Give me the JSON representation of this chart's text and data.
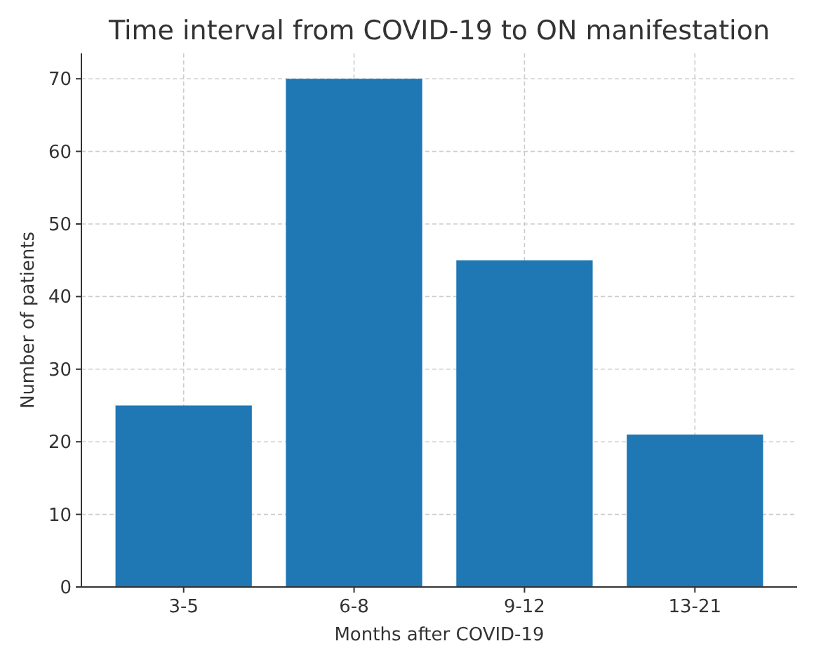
{
  "chart_data": {
    "type": "bar",
    "title": "Time interval from COVID-19 to ON manifestation",
    "xlabel": "Months after COVID-19",
    "ylabel": "Number of patients",
    "categories": [
      "3-5",
      "6-8",
      "9-12",
      "13-21"
    ],
    "values": [
      25,
      70,
      45,
      21
    ],
    "color": "#1f77b4",
    "ylim": [
      0,
      73.5
    ],
    "yticks": [
      0,
      10,
      20,
      30,
      40,
      50,
      60,
      70
    ],
    "grid": true
  }
}
